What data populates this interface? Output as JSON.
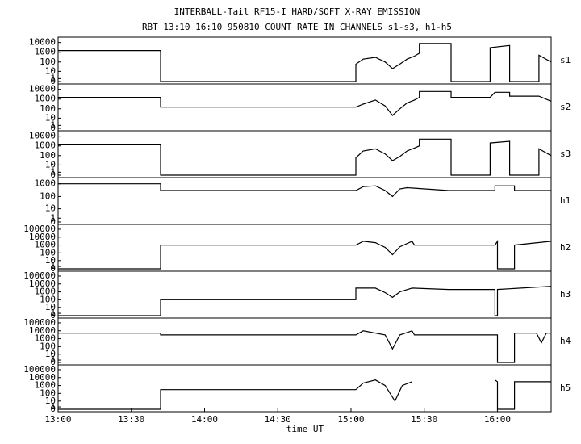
{
  "chart_data": [
    {
      "type": "line",
      "title": "INTERBALL-Tail RF15-I HARD/SOFT X-RAY EMISSION",
      "subtitle": "RBT 13:10 16:10 950810  COUNT RATE IN CHANNELS s1-s3, h1-h5",
      "label": "s1",
      "color": "#000000",
      "yscale": "log1p",
      "xlim": [
        "13:00",
        "16:22"
      ],
      "ylim": [
        0,
        20000
      ],
      "yticks": [
        0,
        1,
        10,
        100,
        1000,
        10000
      ],
      "x": [
        "13:00",
        "13:42",
        "13:42",
        "15:02",
        "15:02",
        "15:05",
        "15:10",
        "15:14",
        "15:17",
        "15:20",
        "15:23",
        "15:26",
        "15:28",
        "15:28",
        "15:41",
        "15:41",
        "15:57",
        "15:57",
        "16:05",
        "16:05",
        "16:17",
        "16:17",
        "16:22"
      ],
      "values": [
        1500,
        1500,
        0,
        0,
        60,
        200,
        300,
        100,
        20,
        60,
        200,
        400,
        800,
        8000,
        8000,
        0,
        0,
        3000,
        5000,
        0,
        0,
        500,
        100
      ]
    },
    {
      "type": "line",
      "label": "s2",
      "color": "#000000",
      "yscale": "log1p",
      "xlim": [
        "13:00",
        "16:22"
      ],
      "ylim": [
        0,
        20000
      ],
      "yticks": [
        0,
        1,
        10,
        100,
        1000,
        10000
      ],
      "x": [
        "13:00",
        "13:42",
        "13:42",
        "15:02",
        "15:05",
        "15:10",
        "15:14",
        "15:17",
        "15:20",
        "15:23",
        "15:26",
        "15:28",
        "15:28",
        "15:41",
        "15:41",
        "15:57",
        "15:59",
        "16:05",
        "16:05",
        "16:17",
        "16:22"
      ],
      "values": [
        1500,
        1500,
        150,
        150,
        300,
        800,
        200,
        20,
        100,
        400,
        800,
        1500,
        6000,
        6000,
        1500,
        1500,
        5000,
        5000,
        2000,
        2000,
        600
      ]
    },
    {
      "type": "line",
      "label": "s3",
      "color": "#000000",
      "yscale": "log1p",
      "xlim": [
        "13:00",
        "16:22"
      ],
      "ylim": [
        0,
        20000
      ],
      "yticks": [
        0,
        1,
        10,
        100,
        1000,
        10000
      ],
      "x": [
        "13:00",
        "13:42",
        "13:42",
        "15:02",
        "15:02",
        "15:05",
        "15:10",
        "15:14",
        "15:17",
        "15:20",
        "15:23",
        "15:26",
        "15:28",
        "15:28",
        "15:41",
        "15:41",
        "15:57",
        "15:57",
        "16:05",
        "16:05",
        "16:17",
        "16:17",
        "16:22"
      ],
      "values": [
        1500,
        1500,
        0,
        0,
        60,
        300,
        500,
        150,
        30,
        80,
        300,
        600,
        1000,
        5000,
        5000,
        0,
        0,
        2000,
        3000,
        0,
        0,
        500,
        100
      ]
    },
    {
      "type": "line",
      "label": "h1",
      "color": "#000000",
      "yscale": "log1p",
      "xlim": [
        "13:00",
        "16:22"
      ],
      "ylim": [
        0,
        2000
      ],
      "yticks": [
        0,
        1,
        10,
        100,
        1000
      ],
      "x": [
        "13:00",
        "13:42",
        "13:42",
        "15:02",
        "15:05",
        "15:10",
        "15:14",
        "15:17",
        "15:20",
        "15:23",
        "15:40",
        "15:59",
        "15:59",
        "16:07",
        "16:07",
        "16:22"
      ],
      "values": [
        1000,
        1000,
        300,
        300,
        600,
        700,
        300,
        100,
        400,
        500,
        300,
        300,
        700,
        700,
        300,
        300
      ]
    },
    {
      "type": "line",
      "label": "h2",
      "color": "#000000",
      "yscale": "log1p",
      "xlim": [
        "13:00",
        "16:22"
      ],
      "ylim": [
        0,
        200000
      ],
      "yticks": [
        0,
        1,
        10,
        100,
        1000,
        10000,
        100000
      ],
      "x": [
        "13:00",
        "13:42",
        "13:42",
        "15:02",
        "15:05",
        "15:10",
        "15:14",
        "15:17",
        "15:20",
        "15:25",
        "15:26",
        "15:59",
        "16:00",
        "16:00",
        "16:07",
        "16:07",
        "16:22"
      ],
      "values": [
        0,
        0,
        1000,
        1000,
        3000,
        2000,
        500,
        60,
        600,
        3000,
        1000,
        1000,
        3000,
        0,
        0,
        1000,
        3000
      ]
    },
    {
      "type": "line",
      "label": "h3",
      "color": "#000000",
      "yscale": "log1p",
      "xlim": [
        "13:00",
        "16:22"
      ],
      "ylim": [
        0,
        200000
      ],
      "yticks": [
        0,
        1,
        10,
        100,
        1000,
        10000,
        100000
      ],
      "x": [
        "13:00",
        "13:42",
        "13:42",
        "15:02",
        "15:02",
        "15:10",
        "15:14",
        "15:17",
        "15:20",
        "15:25",
        "15:40",
        "15:59",
        "15:59",
        "16:00",
        "16:00",
        "16:22"
      ],
      "values": [
        0,
        0,
        100,
        100,
        3000,
        3000,
        800,
        200,
        1000,
        3000,
        2000,
        2000,
        0,
        0,
        2000,
        5000
      ]
    },
    {
      "type": "line",
      "label": "h4",
      "color": "#000000",
      "yscale": "log1p",
      "xlim": [
        "13:00",
        "16:22"
      ],
      "ylim": [
        0,
        200000
      ],
      "yticks": [
        0,
        1,
        10,
        100,
        1000,
        10000,
        100000
      ],
      "x": [
        "13:00",
        "13:42",
        "13:42",
        "15:02",
        "15:05",
        "15:14",
        "15:17",
        "15:20",
        "15:25",
        "15:26",
        "15:59",
        "16:00",
        "16:00",
        "16:07",
        "16:07",
        "16:16",
        "16:18",
        "16:20",
        "16:22"
      ],
      "values": [
        5000,
        5000,
        3000,
        3000,
        10000,
        3000,
        50,
        3000,
        10000,
        3000,
        3000,
        3000,
        0,
        0,
        5000,
        5000,
        300,
        5000,
        5000
      ]
    },
    {
      "type": "line",
      "label": "h5",
      "color": "#000000",
      "yscale": "log1p",
      "xlabel": "time UT",
      "xlim": [
        "13:00",
        "16:22"
      ],
      "ylim": [
        0,
        200000
      ],
      "yticks": [
        0,
        1,
        10,
        100,
        1000,
        10000,
        100000
      ],
      "xticks": [
        "13:00",
        "13:30",
        "14:00",
        "14:30",
        "15:00",
        "15:30",
        "16:00"
      ],
      "x": [
        "13:00",
        "13:42",
        "13:42",
        "15:02",
        "15:05",
        "15:10",
        "15:14",
        "15:18",
        "15:21",
        "15:25",
        "15:26",
        "15:59",
        "16:00",
        "16:00",
        "16:07",
        "16:07",
        "16:22"
      ],
      "values": [
        0,
        0,
        300,
        300,
        2000,
        5000,
        1000,
        10,
        1000,
        3000,
        null,
        5000,
        3000,
        0,
        0,
        3000,
        3000
      ]
    }
  ]
}
